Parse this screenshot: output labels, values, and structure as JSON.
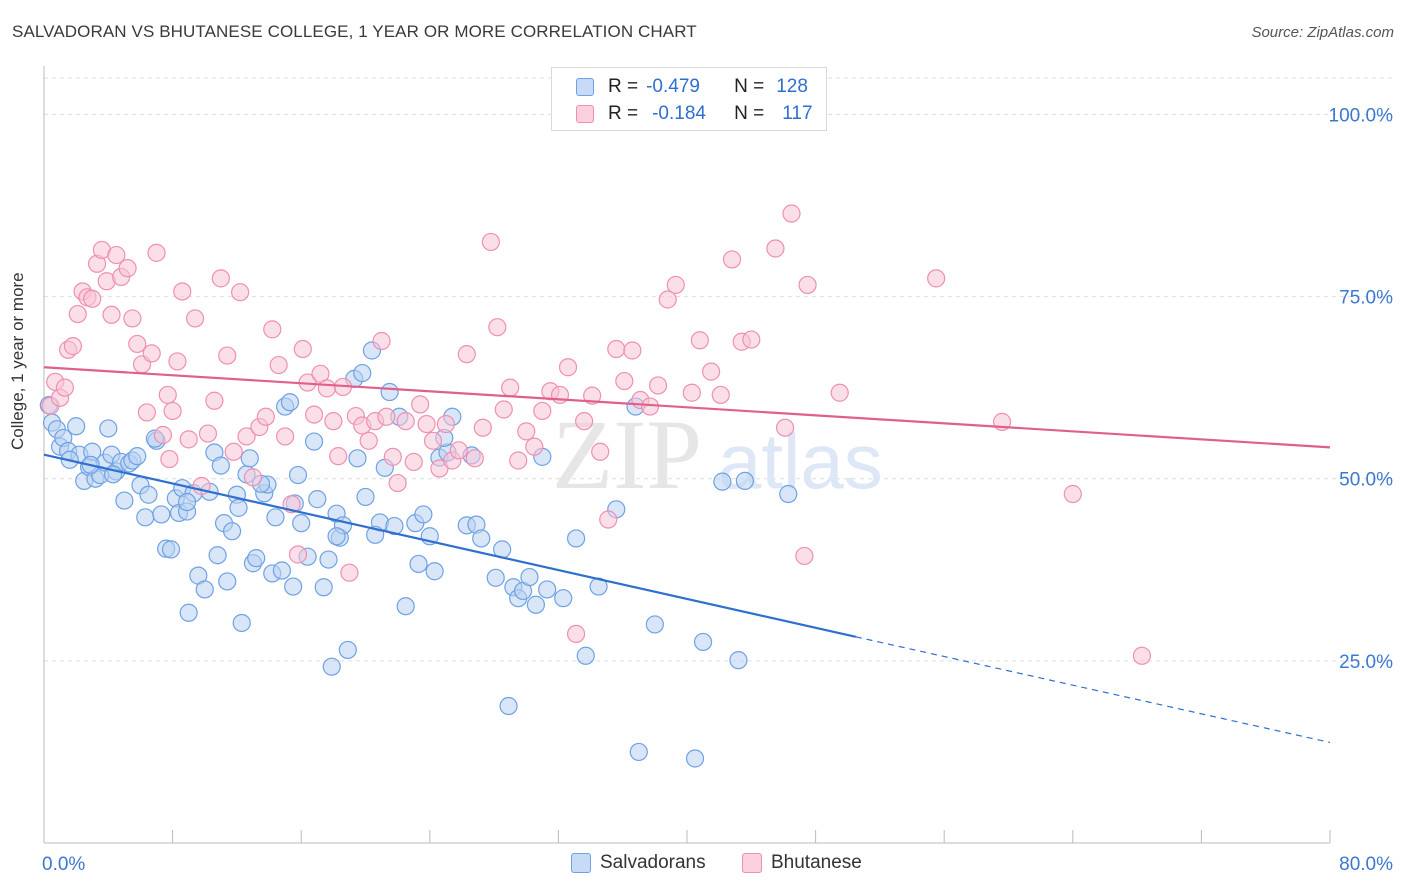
{
  "title": "SALVADORAN VS BHUTANESE COLLEGE, 1 YEAR OR MORE CORRELATION CHART",
  "source": "Source: ZipAtlas.com",
  "watermark": {
    "zip": "ZIP",
    "atlas": "atlas"
  },
  "legend": {
    "r_label": "R =",
    "n_label": "N =",
    "rows": [
      {
        "name": "Salvadorans",
        "r": "-0.479",
        "n": "128",
        "color": "#6ea2e3"
      },
      {
        "name": "Bhutanese",
        "r": "-0.184",
        "n": "117",
        "color": "#ef8fb2"
      }
    ]
  },
  "chart_data": {
    "type": "scatter",
    "title": "SALVADORAN VS BHUTANESE COLLEGE, 1 YEAR OR MORE CORRELATION CHART",
    "xlabel": "",
    "ylabel": "College, 1 year or more",
    "xlim": [
      0,
      80
    ],
    "ylim": [
      0,
      105
    ],
    "x_tick_labels": [
      "0.0%",
      "80.0%"
    ],
    "y_ticks": [
      25,
      50,
      75,
      100
    ],
    "y_tick_labels": [
      "25.0%",
      "50.0%",
      "75.0%",
      "100.0%"
    ],
    "grid": true,
    "series": [
      {
        "name": "Salvadorans",
        "color": "#6ea2e3",
        "line_color": "#2f6fce",
        "trend": {
          "x0": 0.0,
          "y0": 53.3,
          "x1": 50.5,
          "y1": 28.3,
          "dash_x1": 80.0,
          "dash_y1": 13.8
        },
        "points": [
          [
            0.3,
            60.1
          ],
          [
            0.5,
            57.7
          ],
          [
            0.8,
            56.8
          ],
          [
            1.0,
            54.4
          ],
          [
            1.2,
            55.6
          ],
          [
            1.5,
            53.8
          ],
          [
            2.0,
            57.2
          ],
          [
            2.2,
            53.3
          ],
          [
            2.5,
            49.7
          ],
          [
            2.8,
            51.6
          ],
          [
            3.0,
            53.7
          ],
          [
            3.2,
            50.0
          ],
          [
            3.5,
            50.5
          ],
          [
            3.8,
            52.2
          ],
          [
            4.0,
            56.9
          ],
          [
            4.2,
            53.3
          ],
          [
            4.5,
            51.0
          ],
          [
            4.8,
            52.3
          ],
          [
            5.0,
            47.0
          ],
          [
            5.3,
            52.1
          ],
          [
            5.5,
            52.5
          ],
          [
            5.8,
            53.1
          ],
          [
            6.0,
            49.1
          ],
          [
            6.3,
            44.7
          ],
          [
            6.5,
            47.8
          ],
          [
            7.0,
            55.2
          ],
          [
            7.3,
            45.1
          ],
          [
            7.6,
            40.4
          ],
          [
            7.9,
            40.3
          ],
          [
            8.2,
            47.3
          ],
          [
            8.4,
            45.3
          ],
          [
            8.6,
            48.7
          ],
          [
            8.9,
            45.5
          ],
          [
            9.0,
            31.6
          ],
          [
            9.3,
            48.0
          ],
          [
            9.6,
            36.7
          ],
          [
            10.0,
            34.8
          ],
          [
            10.3,
            48.2
          ],
          [
            10.6,
            53.6
          ],
          [
            11.0,
            51.8
          ],
          [
            11.2,
            43.9
          ],
          [
            11.4,
            35.9
          ],
          [
            11.7,
            42.8
          ],
          [
            12.0,
            47.8
          ],
          [
            12.3,
            30.2
          ],
          [
            12.6,
            50.6
          ],
          [
            12.8,
            52.8
          ],
          [
            13.0,
            38.4
          ],
          [
            13.2,
            39.1
          ],
          [
            13.7,
            48.0
          ],
          [
            13.9,
            49.2
          ],
          [
            14.2,
            37.0
          ],
          [
            14.4,
            44.7
          ],
          [
            14.8,
            37.4
          ],
          [
            15.0,
            59.9
          ],
          [
            15.3,
            60.5
          ],
          [
            15.5,
            35.2
          ],
          [
            15.8,
            50.5
          ],
          [
            16.0,
            43.9
          ],
          [
            16.4,
            39.3
          ],
          [
            16.8,
            55.1
          ],
          [
            17.0,
            47.2
          ],
          [
            17.4,
            35.1
          ],
          [
            17.7,
            38.9
          ],
          [
            17.9,
            24.2
          ],
          [
            18.2,
            45.2
          ],
          [
            18.4,
            41.9
          ],
          [
            18.6,
            43.6
          ],
          [
            18.9,
            26.5
          ],
          [
            19.3,
            63.7
          ],
          [
            19.5,
            52.8
          ],
          [
            19.8,
            64.5
          ],
          [
            20.0,
            47.5
          ],
          [
            20.4,
            67.6
          ],
          [
            20.9,
            44.0
          ],
          [
            21.2,
            51.5
          ],
          [
            21.5,
            61.9
          ],
          [
            21.8,
            43.5
          ],
          [
            22.1,
            58.5
          ],
          [
            22.5,
            32.5
          ],
          [
            23.1,
            43.9
          ],
          [
            23.3,
            38.3
          ],
          [
            23.6,
            45.1
          ],
          [
            24.0,
            42.1
          ],
          [
            24.3,
            37.3
          ],
          [
            24.6,
            52.9
          ],
          [
            25.1,
            53.6
          ],
          [
            25.4,
            58.5
          ],
          [
            26.3,
            43.6
          ],
          [
            26.6,
            53.2
          ],
          [
            26.9,
            43.7
          ],
          [
            27.2,
            41.8
          ],
          [
            28.1,
            36.4
          ],
          [
            28.5,
            40.3
          ],
          [
            28.9,
            18.8
          ],
          [
            29.2,
            35.1
          ],
          [
            29.5,
            33.6
          ],
          [
            29.8,
            34.6
          ],
          [
            30.2,
            36.5
          ],
          [
            30.6,
            32.7
          ],
          [
            31.0,
            53.0
          ],
          [
            31.3,
            34.8
          ],
          [
            32.3,
            33.6
          ],
          [
            33.1,
            41.8
          ],
          [
            33.7,
            25.7
          ],
          [
            34.5,
            35.2
          ],
          [
            35.6,
            45.8
          ],
          [
            36.8,
            59.9
          ],
          [
            37.0,
            12.5
          ],
          [
            38.0,
            30.0
          ],
          [
            40.5,
            11.6
          ],
          [
            41.0,
            27.6
          ],
          [
            42.2,
            49.6
          ],
          [
            43.2,
            25.1
          ],
          [
            43.6,
            49.7
          ],
          [
            46.3,
            47.9
          ],
          [
            18.2,
            42.1
          ],
          [
            13.5,
            49.3
          ],
          [
            10.8,
            39.5
          ],
          [
            6.9,
            55.5
          ],
          [
            4.3,
            50.6
          ],
          [
            2.9,
            51.9
          ],
          [
            1.6,
            52.6
          ],
          [
            24.9,
            55.6
          ],
          [
            8.9,
            46.8
          ],
          [
            15.6,
            46.6
          ],
          [
            20.6,
            42.3
          ],
          [
            12.1,
            46.0
          ]
        ]
      },
      {
        "name": "Bhutanese",
        "color": "#ef8fb2",
        "line_color": "#e0608c",
        "trend": {
          "x0": 0.0,
          "y0": 65.3,
          "x1": 80.0,
          "y1": 54.3
        },
        "points": [
          [
            0.4,
            60.0
          ],
          [
            0.7,
            63.3
          ],
          [
            1.0,
            61.1
          ],
          [
            1.3,
            62.5
          ],
          [
            1.5,
            67.7
          ],
          [
            1.8,
            68.2
          ],
          [
            2.1,
            72.6
          ],
          [
            2.4,
            75.7
          ],
          [
            2.7,
            74.9
          ],
          [
            3.0,
            74.7
          ],
          [
            3.3,
            79.5
          ],
          [
            3.6,
            81.4
          ],
          [
            3.9,
            77.1
          ],
          [
            4.2,
            72.5
          ],
          [
            4.5,
            80.7
          ],
          [
            4.8,
            77.7
          ],
          [
            5.2,
            78.9
          ],
          [
            5.5,
            72.0
          ],
          [
            5.8,
            68.5
          ],
          [
            6.1,
            65.7
          ],
          [
            6.4,
            59.1
          ],
          [
            6.7,
            67.2
          ],
          [
            7.0,
            81.0
          ],
          [
            7.4,
            56.0
          ],
          [
            7.7,
            61.5
          ],
          [
            8.0,
            59.3
          ],
          [
            8.3,
            66.1
          ],
          [
            8.6,
            75.7
          ],
          [
            9.0,
            55.4
          ],
          [
            9.4,
            72.0
          ],
          [
            9.8,
            49.0
          ],
          [
            10.2,
            56.2
          ],
          [
            10.6,
            60.7
          ],
          [
            11.0,
            77.5
          ],
          [
            11.4,
            66.9
          ],
          [
            11.8,
            53.7
          ],
          [
            12.2,
            75.6
          ],
          [
            12.6,
            55.8
          ],
          [
            13.0,
            50.2
          ],
          [
            13.4,
            57.1
          ],
          [
            13.8,
            58.5
          ],
          [
            14.2,
            70.5
          ],
          [
            14.6,
            65.6
          ],
          [
            15.0,
            55.8
          ],
          [
            15.4,
            46.5
          ],
          [
            15.8,
            39.6
          ],
          [
            16.1,
            67.8
          ],
          [
            16.4,
            63.2
          ],
          [
            16.8,
            58.8
          ],
          [
            17.2,
            64.4
          ],
          [
            17.6,
            62.4
          ],
          [
            18.0,
            57.9
          ],
          [
            18.3,
            53.1
          ],
          [
            18.6,
            62.6
          ],
          [
            19.0,
            37.1
          ],
          [
            19.4,
            58.6
          ],
          [
            19.8,
            57.3
          ],
          [
            20.2,
            55.2
          ],
          [
            20.6,
            57.9
          ],
          [
            21.0,
            68.9
          ],
          [
            21.3,
            58.5
          ],
          [
            21.7,
            53.0
          ],
          [
            22.0,
            49.4
          ],
          [
            22.5,
            57.9
          ],
          [
            23.0,
            52.3
          ],
          [
            23.4,
            60.2
          ],
          [
            23.8,
            57.5
          ],
          [
            24.2,
            55.2
          ],
          [
            24.6,
            51.4
          ],
          [
            25.0,
            57.5
          ],
          [
            25.4,
            52.5
          ],
          [
            25.8,
            53.9
          ],
          [
            26.3,
            67.1
          ],
          [
            26.8,
            52.8
          ],
          [
            27.3,
            57.0
          ],
          [
            27.8,
            82.5
          ],
          [
            28.2,
            70.8
          ],
          [
            28.6,
            59.5
          ],
          [
            29.0,
            62.5
          ],
          [
            29.5,
            52.5
          ],
          [
            30.0,
            56.5
          ],
          [
            30.5,
            54.4
          ],
          [
            31.0,
            59.3
          ],
          [
            31.5,
            62.0
          ],
          [
            32.1,
            61.5
          ],
          [
            32.6,
            65.3
          ],
          [
            33.1,
            28.7
          ],
          [
            33.6,
            57.9
          ],
          [
            34.1,
            61.4
          ],
          [
            34.6,
            53.7
          ],
          [
            35.1,
            44.4
          ],
          [
            35.6,
            67.8
          ],
          [
            36.1,
            63.4
          ],
          [
            36.6,
            67.6
          ],
          [
            37.1,
            60.8
          ],
          [
            37.7,
            59.9
          ],
          [
            38.2,
            62.8
          ],
          [
            38.8,
            74.6
          ],
          [
            39.3,
            76.6
          ],
          [
            40.3,
            61.8
          ],
          [
            40.8,
            69.0
          ],
          [
            41.5,
            64.7
          ],
          [
            42.1,
            61.5
          ],
          [
            42.8,
            80.1
          ],
          [
            43.4,
            68.8
          ],
          [
            44.0,
            69.1
          ],
          [
            45.5,
            81.6
          ],
          [
            46.1,
            57.0
          ],
          [
            46.5,
            86.4
          ],
          [
            47.3,
            39.4
          ],
          [
            47.5,
            76.6
          ],
          [
            49.5,
            61.8
          ],
          [
            55.5,
            77.5
          ],
          [
            59.6,
            57.8
          ],
          [
            64.0,
            47.9
          ],
          [
            68.3,
            25.7
          ],
          [
            7.8,
            52.7
          ]
        ]
      }
    ]
  }
}
